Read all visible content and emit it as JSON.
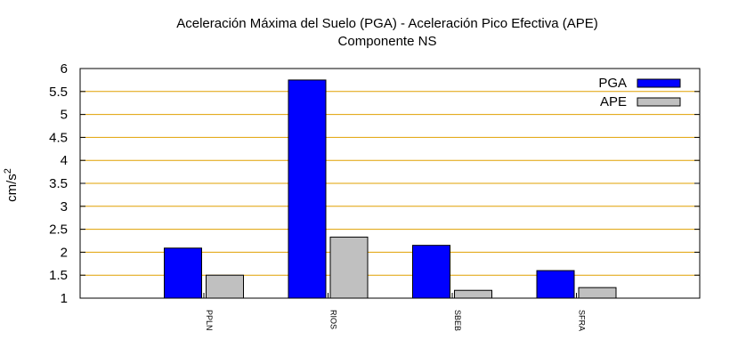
{
  "chart_data": {
    "type": "bar",
    "title": "Aceleración Máxima del Suelo (PGA) -  Aceleración Pico Efectiva (APE)",
    "subtitle": "Componente NS",
    "ylabel": "cm/s",
    "ylabel_superscript": "2",
    "xlabel": "",
    "ylim": [
      1,
      6
    ],
    "yticks": [
      "1",
      "1.5",
      "2",
      "2.5",
      "3",
      "3.5",
      "4",
      "4.5",
      "5",
      "5.5",
      "6"
    ],
    "grid": "horizontal",
    "legend_position": "top-right",
    "categories": [
      "PPLN",
      "RIOS",
      "SBEB",
      "SFRA"
    ],
    "series": [
      {
        "name": "PGA",
        "color": "#0000ff",
        "values": [
          2.09,
          5.75,
          2.15,
          1.6
        ]
      },
      {
        "name": "APE",
        "color": "#c0c0c0",
        "values": [
          1.5,
          2.33,
          1.17,
          1.23
        ]
      }
    ]
  }
}
